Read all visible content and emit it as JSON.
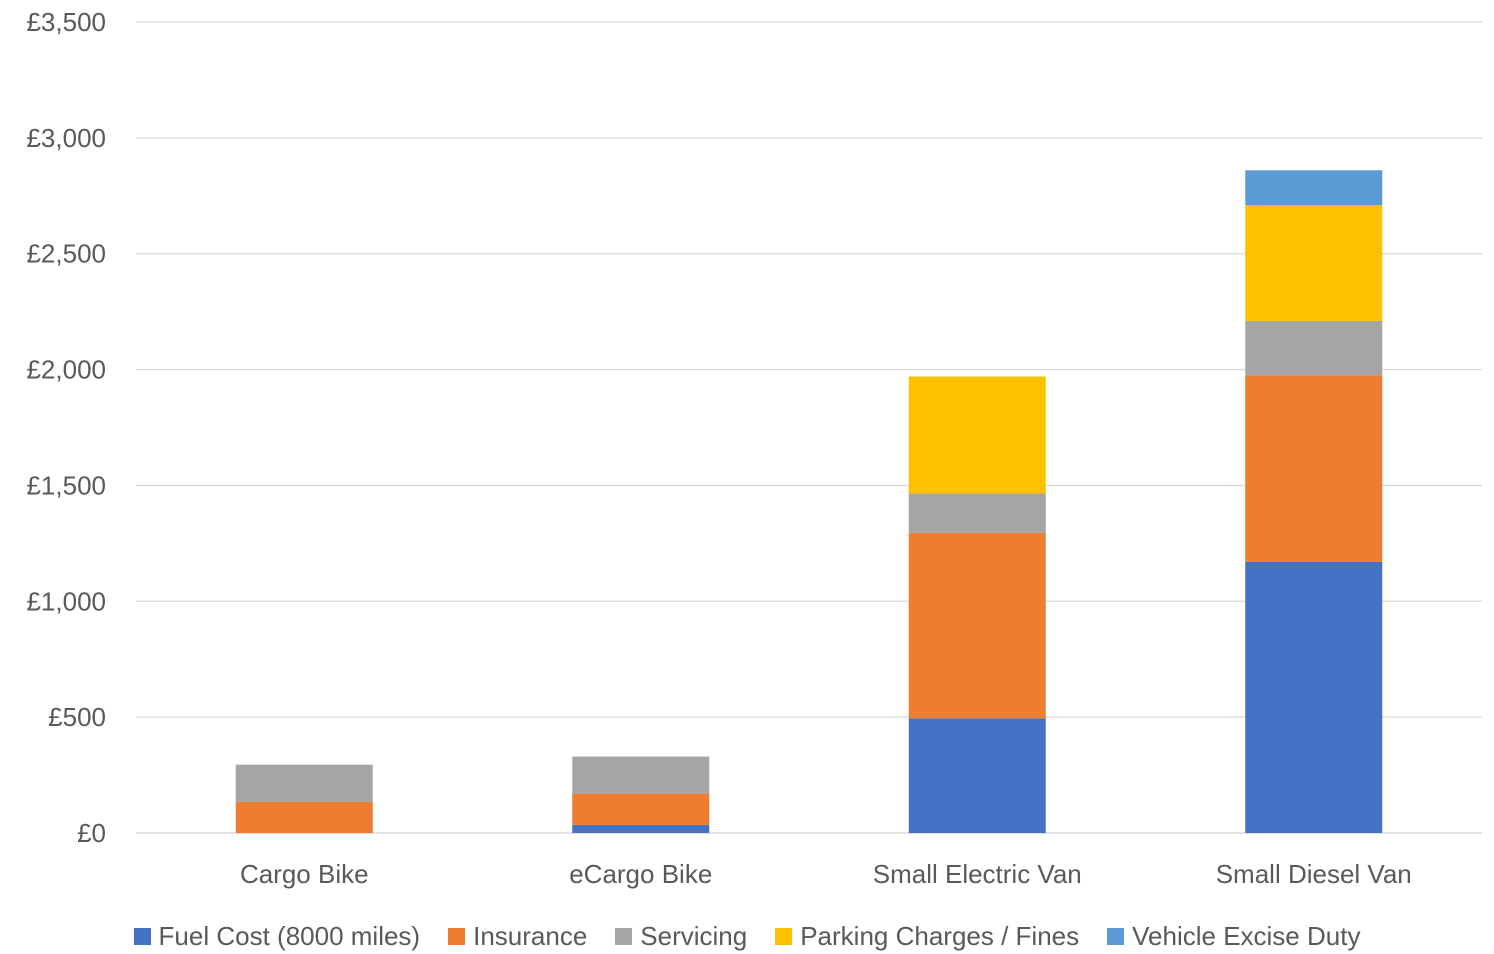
{
  "chart_data": {
    "type": "bar",
    "stacked": true,
    "categories": [
      "Cargo Bike",
      "eCargo Bike",
      "Small Electric Van",
      "Small Diesel Van"
    ],
    "series": [
      {
        "name": "Fuel Cost (8000 miles)",
        "color": "#4472C4",
        "values": [
          0,
          35,
          495,
          1170
        ]
      },
      {
        "name": "Insurance",
        "color": "#ED7D31",
        "values": [
          135,
          135,
          800,
          805
        ]
      },
      {
        "name": "Servicing",
        "color": "#A5A5A5",
        "values": [
          160,
          160,
          170,
          235
        ]
      },
      {
        "name": "Parking Charges / Fines",
        "color": "#FFC000",
        "values": [
          0,
          0,
          505,
          500
        ]
      },
      {
        "name": "Vehicle Excise Duty",
        "color": "#5B9BD5",
        "values": [
          0,
          0,
          0,
          150
        ]
      }
    ],
    "ylim": [
      0,
      3500
    ],
    "yticks": [
      "£0",
      "£500",
      "£1,000",
      "£1,500",
      "£2,000",
      "£2,500",
      "£3,000",
      "£3,500"
    ],
    "ytick_values": [
      0,
      500,
      1000,
      1500,
      2000,
      2500,
      3000,
      3500
    ],
    "grid": true,
    "legend_position": "bottom",
    "title": "",
    "xlabel": "",
    "ylabel": ""
  }
}
